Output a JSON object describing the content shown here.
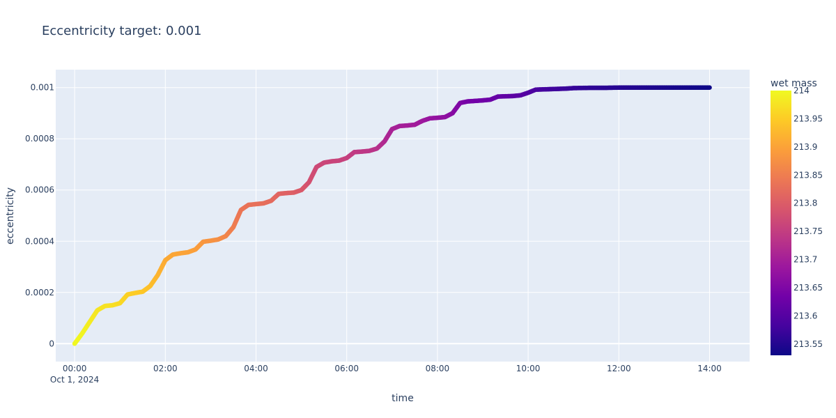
{
  "chart_data": {
    "type": "scatter",
    "title": "Eccentricity target: 0.001",
    "xlabel": "time",
    "ylabel": "eccentricity",
    "x_unit": "time",
    "x_range": [
      "2024-09-30T23:35:00",
      "2024-10-01T14:53:00"
    ],
    "ylim": [
      -7e-05,
      0.00107
    ],
    "x_ticks": [
      {
        "value": "2024-10-01T00:00:00",
        "label": "00:00",
        "sublabel": "Oct 1, 2024"
      },
      {
        "value": "2024-10-01T02:00:00",
        "label": "02:00"
      },
      {
        "value": "2024-10-01T04:00:00",
        "label": "04:00"
      },
      {
        "value": "2024-10-01T06:00:00",
        "label": "06:00"
      },
      {
        "value": "2024-10-01T08:00:00",
        "label": "08:00"
      },
      {
        "value": "2024-10-01T10:00:00",
        "label": "10:00"
      },
      {
        "value": "2024-10-01T12:00:00",
        "label": "12:00"
      },
      {
        "value": "2024-10-01T14:00:00",
        "label": "14:00"
      }
    ],
    "y_ticks": [
      {
        "value": 0,
        "label": "0"
      },
      {
        "value": 0.0002,
        "label": "0.0002"
      },
      {
        "value": 0.0004,
        "label": "0.0004"
      },
      {
        "value": 0.0006,
        "label": "0.0006"
      },
      {
        "value": 0.0008,
        "label": "0.0008"
      },
      {
        "value": 0.001,
        "label": "0.001"
      }
    ],
    "grid": true,
    "plot_bgcolor": "#e5ecf6",
    "colorbar": {
      "title": "wet mass",
      "range": [
        213.53,
        214
      ],
      "ticks": [
        {
          "value": 214,
          "label": "214"
        },
        {
          "value": 213.95,
          "label": "213.95"
        },
        {
          "value": 213.9,
          "label": "213.9"
        },
        {
          "value": 213.85,
          "label": "213.85"
        },
        {
          "value": 213.8,
          "label": "213.8"
        },
        {
          "value": 213.75,
          "label": "213.75"
        },
        {
          "value": 213.7,
          "label": "213.7"
        },
        {
          "value": 213.65,
          "label": "213.65"
        },
        {
          "value": 213.6,
          "label": "213.6"
        },
        {
          "value": 213.55,
          "label": "213.55"
        }
      ],
      "colorscale": [
        "#0d0887",
        "#46039f",
        "#7201a8",
        "#9c179e",
        "#bd3786",
        "#d8576b",
        "#ed7953",
        "#fb9f3a",
        "#fdca26",
        "#f0f921"
      ]
    },
    "series": [
      {
        "x": [
          "2024-10-01T00:00:00",
          "2024-10-01T00:10:00",
          "2024-10-01T00:20:00",
          "2024-10-01T00:30:00",
          "2024-10-01T00:40:00",
          "2024-10-01T00:50:00",
          "2024-10-01T01:00:00",
          "2024-10-01T01:10:00",
          "2024-10-01T01:20:00",
          "2024-10-01T01:30:00",
          "2024-10-01T01:40:00",
          "2024-10-01T01:50:00",
          "2024-10-01T02:00:00",
          "2024-10-01T02:10:00",
          "2024-10-01T02:20:00",
          "2024-10-01T02:30:00",
          "2024-10-01T02:40:00",
          "2024-10-01T02:50:00",
          "2024-10-01T03:00:00",
          "2024-10-01T03:10:00",
          "2024-10-01T03:20:00",
          "2024-10-01T03:30:00",
          "2024-10-01T03:40:00",
          "2024-10-01T03:50:00",
          "2024-10-01T04:00:00",
          "2024-10-01T04:10:00",
          "2024-10-01T04:20:00",
          "2024-10-01T04:30:00",
          "2024-10-01T04:40:00",
          "2024-10-01T04:50:00",
          "2024-10-01T05:00:00",
          "2024-10-01T05:10:00",
          "2024-10-01T05:20:00",
          "2024-10-01T05:30:00",
          "2024-10-01T05:40:00",
          "2024-10-01T05:50:00",
          "2024-10-01T06:00:00",
          "2024-10-01T06:10:00",
          "2024-10-01T06:20:00",
          "2024-10-01T06:30:00",
          "2024-10-01T06:40:00",
          "2024-10-01T06:50:00",
          "2024-10-01T07:00:00",
          "2024-10-01T07:10:00",
          "2024-10-01T07:20:00",
          "2024-10-01T07:30:00",
          "2024-10-01T07:40:00",
          "2024-10-01T07:50:00",
          "2024-10-01T08:00:00",
          "2024-10-01T08:10:00",
          "2024-10-01T08:20:00",
          "2024-10-01T08:30:00",
          "2024-10-01T08:40:00",
          "2024-10-01T08:50:00",
          "2024-10-01T09:00:00",
          "2024-10-01T09:10:00",
          "2024-10-01T09:20:00",
          "2024-10-01T09:30:00",
          "2024-10-01T09:40:00",
          "2024-10-01T09:50:00",
          "2024-10-01T10:00:00",
          "2024-10-01T10:10:00",
          "2024-10-01T10:20:00",
          "2024-10-01T10:30:00",
          "2024-10-01T10:40:00",
          "2024-10-01T10:50:00",
          "2024-10-01T11:00:00",
          "2024-10-01T11:20:00",
          "2024-10-01T11:40:00",
          "2024-10-01T12:00:00",
          "2024-10-01T12:20:00",
          "2024-10-01T12:40:00",
          "2024-10-01T13:00:00",
          "2024-10-01T13:20:00",
          "2024-10-01T13:40:00",
          "2024-10-01T14:00:00"
        ],
        "y": [
          0.0,
          4e-05,
          8.5e-05,
          0.00013,
          0.000147,
          0.00015,
          0.000158,
          0.000192,
          0.000198,
          0.000203,
          0.000225,
          0.000268,
          0.000326,
          0.000348,
          0.000353,
          0.000357,
          0.000368,
          0.000398,
          0.000402,
          0.000407,
          0.00042,
          0.000455,
          0.000522,
          0.000542,
          0.000545,
          0.000548,
          0.000558,
          0.000585,
          0.000588,
          0.00059,
          0.0006,
          0.00063,
          0.00069,
          0.000707,
          0.000712,
          0.000715,
          0.000725,
          0.000748,
          0.00075,
          0.000753,
          0.000762,
          0.00079,
          0.000838,
          0.00085,
          0.000852,
          0.000855,
          0.00087,
          0.00088,
          0.000882,
          0.000885,
          0.0009,
          0.00094,
          0.000946,
          0.000948,
          0.00095,
          0.000953,
          0.000965,
          0.000966,
          0.000967,
          0.00097,
          0.00098,
          0.000992,
          0.000993,
          0.000994,
          0.000995,
          0.000996,
          0.000998,
          0.000999,
          0.000999,
          0.001,
          0.001,
          0.001,
          0.001,
          0.001,
          0.001,
          0.001
        ],
        "color": [
          213.999,
          213.995,
          213.985,
          213.978,
          213.975,
          213.972,
          213.965,
          213.955,
          213.95,
          213.945,
          213.935,
          213.922,
          213.91,
          213.905,
          213.902,
          213.9,
          213.895,
          213.885,
          213.88,
          213.875,
          213.862,
          213.85,
          213.838,
          213.833,
          213.83,
          213.827,
          213.822,
          213.812,
          213.808,
          213.804,
          213.795,
          213.782,
          213.77,
          213.765,
          213.762,
          213.76,
          213.755,
          213.745,
          213.741,
          213.738,
          213.73,
          213.717,
          213.705,
          213.7,
          213.698,
          213.695,
          213.69,
          213.68,
          213.676,
          213.672,
          213.662,
          213.65,
          213.64,
          213.636,
          213.632,
          213.628,
          213.62,
          213.614,
          213.61,
          213.606,
          213.598,
          213.588,
          213.582,
          213.578,
          213.575,
          213.572,
          213.568,
          213.562,
          213.558,
          213.554,
          213.55,
          213.546,
          213.542,
          213.538,
          213.535,
          213.532
        ]
      }
    ]
  }
}
